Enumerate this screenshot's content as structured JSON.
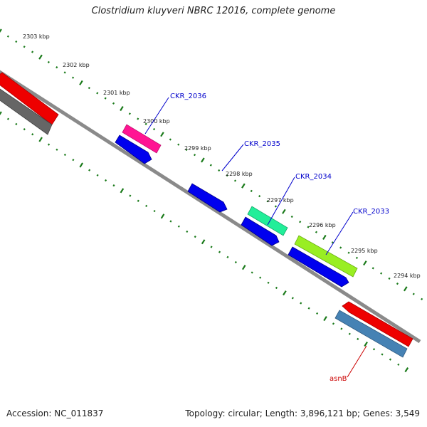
{
  "title": "Clostridium kluyveri NBRC 12016, complete genome",
  "footer": {
    "accession": "Accession: NC_011837",
    "summary": "Topology: circular; Length: 3,896,121 bp; Genes: 3,549"
  },
  "colors": {
    "backbone": "#808080",
    "tick": "#1a7a1a",
    "gene_label": "#0000cc",
    "rna_label": "#cc0000"
  },
  "ticks": [
    {
      "label": "2303 kbp"
    },
    {
      "label": "2302 kbp"
    },
    {
      "label": "2301 kbp"
    },
    {
      "label": "2300 kbp"
    },
    {
      "label": "2299 kbp"
    },
    {
      "label": "2298 kbp"
    },
    {
      "label": "2297 kbp"
    },
    {
      "label": "2296 kbp"
    },
    {
      "label": "2295 kbp"
    },
    {
      "label": "2294 kbp"
    }
  ],
  "features": [
    {
      "name": "red-feature-upper-left",
      "color": "#ee0000"
    },
    {
      "name": "gray-feature-upper-left",
      "color": "#666666"
    },
    {
      "name": "gene-ckr-2036",
      "color": "#ff1493"
    },
    {
      "name": "cds-blue-1",
      "color": "#0000ee"
    },
    {
      "name": "cds-blue-2",
      "color": "#0000ee"
    },
    {
      "name": "gene-ckr-2035",
      "color": "#22ee99"
    },
    {
      "name": "cds-blue-3",
      "color": "#0000ee"
    },
    {
      "name": "gene-ckr-2034",
      "color": "#99ee22"
    },
    {
      "name": "cds-blue-4",
      "color": "#0000ee"
    },
    {
      "name": "gene-asnb",
      "color": "#ee0000"
    },
    {
      "name": "cds-steelblue",
      "color": "#4682b4"
    }
  ],
  "labels": [
    {
      "text": "CKR_2036",
      "color": "#0000cc"
    },
    {
      "text": "CKR_2035",
      "color": "#0000cc"
    },
    {
      "text": "CKR_2034",
      "color": "#0000cc"
    },
    {
      "text": "CKR_2033",
      "color": "#0000cc"
    },
    {
      "text": "asnB",
      "color": "#cc0000"
    }
  ]
}
